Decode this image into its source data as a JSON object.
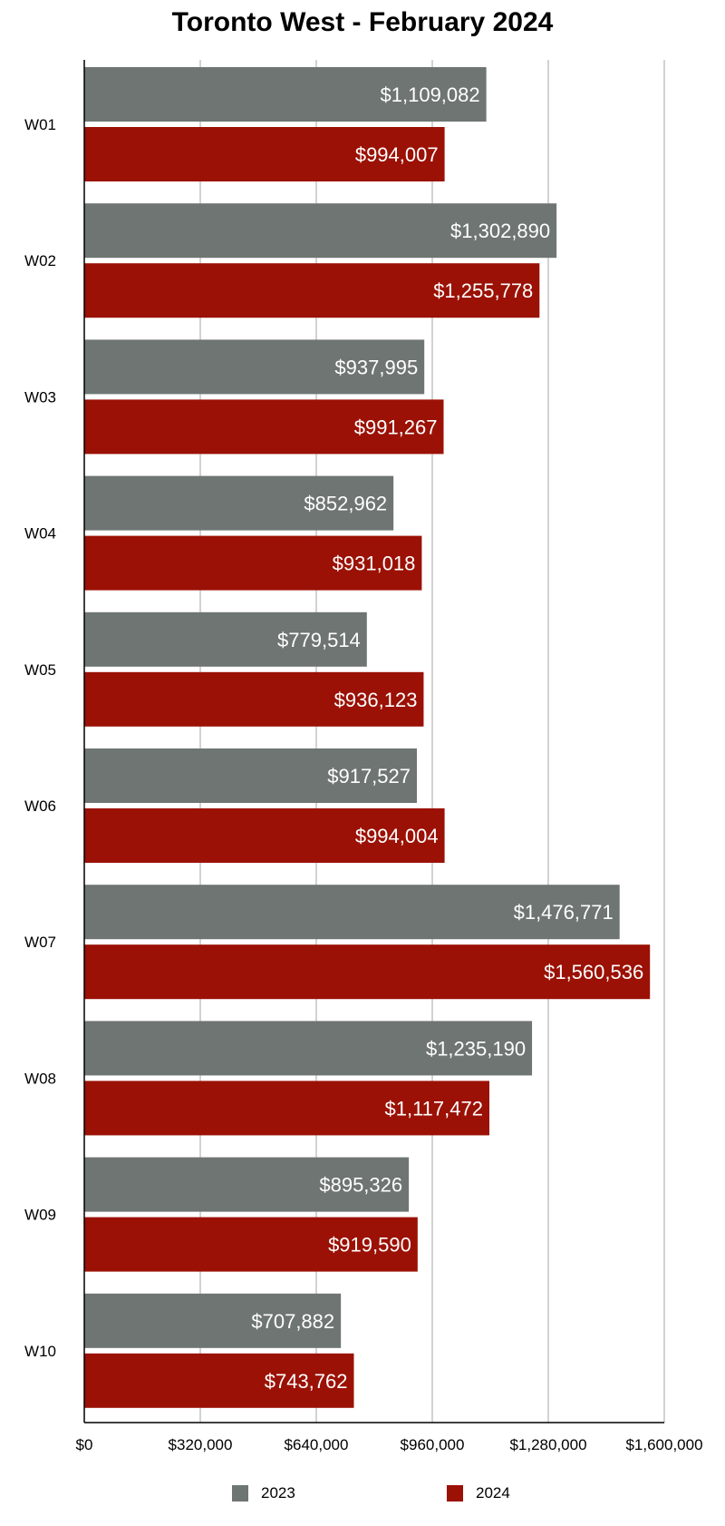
{
  "chart_data": {
    "type": "bar",
    "orientation": "horizontal",
    "title": "Toronto West - February 2024",
    "categories": [
      "W01",
      "W02",
      "W03",
      "W04",
      "W05",
      "W06",
      "W07",
      "W08",
      "W09",
      "W10"
    ],
    "series": [
      {
        "name": "2023",
        "color": "#6e7572",
        "values": [
          1109082,
          1302890,
          937995,
          852962,
          779514,
          917527,
          1476771,
          1235190,
          895326,
          707882
        ],
        "labels": [
          "$1,109,082",
          "$1,302,890",
          "$937,995",
          "$852,962",
          "$779,514",
          "$917,527",
          "$1,476,771",
          "$1,235,190",
          "$895,326",
          "$707,882"
        ]
      },
      {
        "name": "2024",
        "color": "#9b1105",
        "values": [
          994007,
          1255778,
          991267,
          931018,
          936123,
          994004,
          1560536,
          1117472,
          919590,
          743762
        ],
        "labels": [
          "$994,007",
          "$1,255,778",
          "$991,267",
          "$931,018",
          "$936,123",
          "$994,004",
          "$1,560,536",
          "$1,117,472",
          "$919,590",
          "$743,762"
        ]
      }
    ],
    "xlim": [
      0,
      1600000
    ],
    "xticks": [
      0,
      320000,
      640000,
      960000,
      1280000,
      1600000
    ],
    "xtick_labels": [
      "$0",
      "$320,000",
      "$640,000",
      "$960,000",
      "$1,280,000",
      "$1,600,000"
    ],
    "grid": true,
    "legend_position": "bottom"
  }
}
